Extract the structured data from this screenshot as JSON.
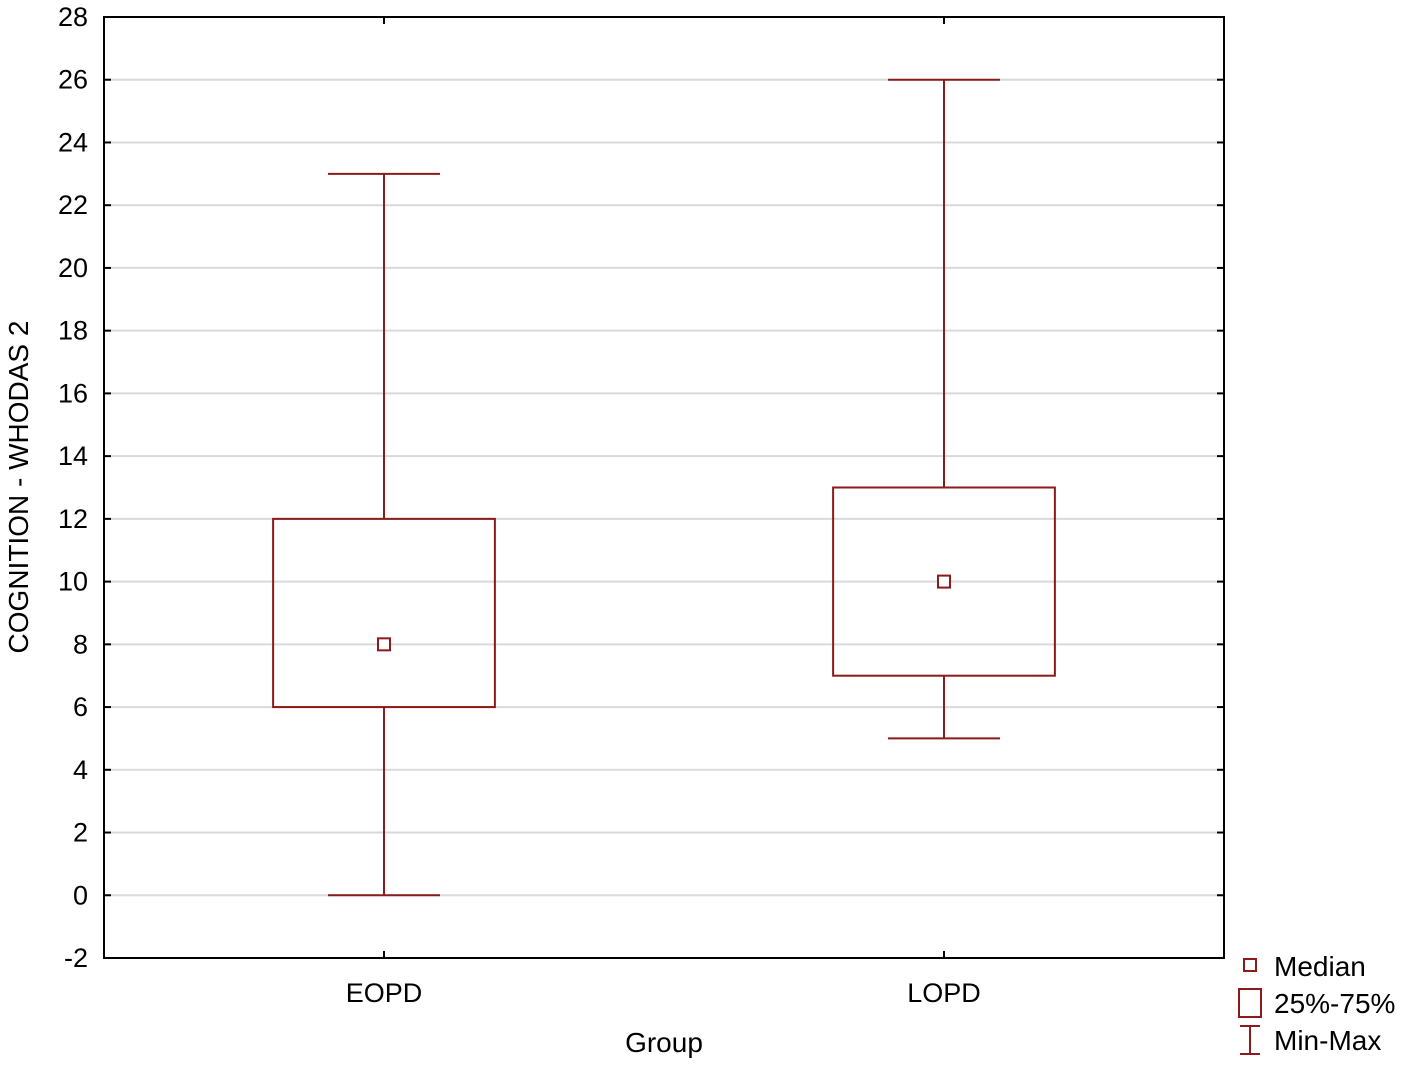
{
  "chart_data": {
    "type": "boxplot",
    "xlabel": "Group",
    "ylabel": "COGNITION - WHODAS 2",
    "ylim": [
      -2,
      28
    ],
    "yticks": [
      -2,
      0,
      2,
      4,
      6,
      8,
      10,
      12,
      14,
      16,
      18,
      20,
      22,
      24,
      26,
      28
    ],
    "grid": true,
    "categories": [
      "EOPD",
      "LOPD"
    ],
    "boxes": [
      {
        "group": "EOPD",
        "min": 0,
        "q1": 6,
        "median": 8,
        "q3": 12,
        "max": 23
      },
      {
        "group": "LOPD",
        "min": 5,
        "q1": 7,
        "median": 10,
        "q3": 13,
        "max": 26
      }
    ],
    "legend": {
      "placement": "bottom-right",
      "items": [
        {
          "symbol": "median-marker",
          "label": "Median"
        },
        {
          "symbol": "box",
          "label": "25%-75%"
        },
        {
          "symbol": "whisker",
          "label": "Min-Max"
        }
      ]
    },
    "colors": {
      "series": "#8b1a1a",
      "grid": "#d9d9d9",
      "axis": "#000000"
    }
  }
}
